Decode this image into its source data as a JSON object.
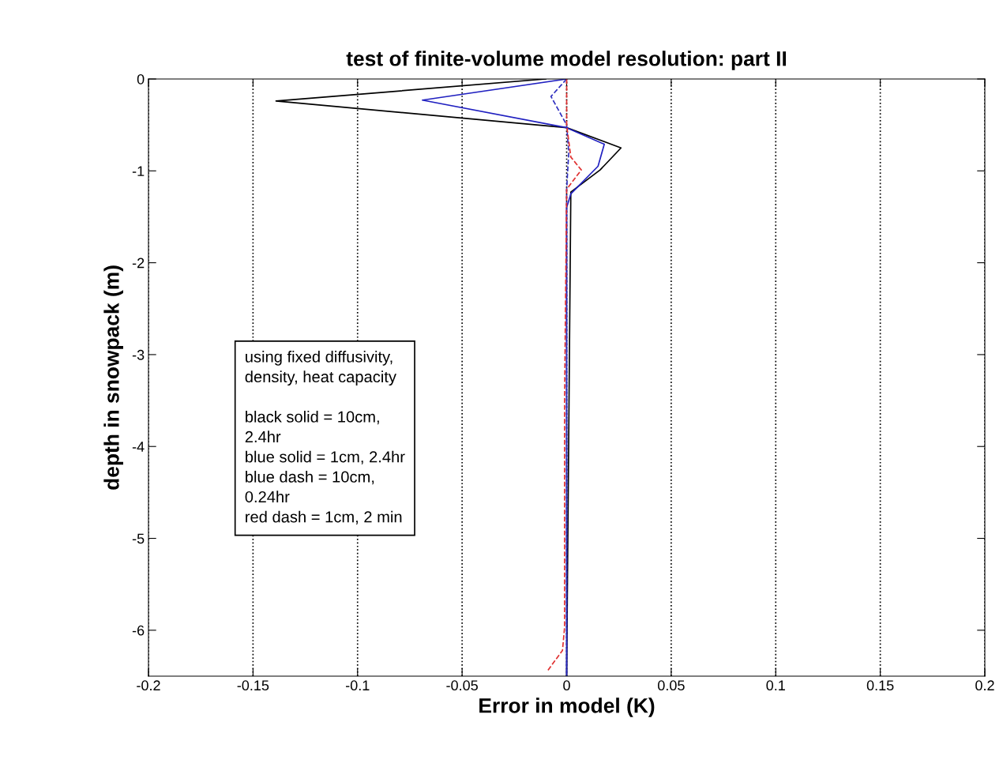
{
  "chart_data": {
    "type": "line",
    "title": "test of finite-volume model resolution: part II",
    "xlabel": "Error in model (K)",
    "ylabel": "depth in snowpack (m)",
    "xlim": [
      -0.2,
      0.2
    ],
    "xticks": [
      -0.2,
      -0.15,
      -0.1,
      -0.05,
      0,
      0.05,
      0.1,
      0.15,
      0.2
    ],
    "ylim": [
      -6.5,
      0
    ],
    "yticks": [
      -6,
      -5,
      -4,
      -3,
      -2,
      -1,
      0
    ],
    "grid": "x",
    "legend": false,
    "annotations": [
      "using fixed diffusivity,\ndensity, heat capacity\n\nblack solid = 10cm,\n2.4hr\nblue solid = 1cm, 2.4hr\nblue dash = 10cm,\n0.24hr\nred dash = 1cm, 2 min"
    ],
    "series": [
      {
        "color": "#000000",
        "line_style": "solid",
        "x": [
          -0.01,
          -0.139,
          0.0,
          0.026,
          0.016,
          0.002,
          0.0
        ],
        "values": [
          0,
          -0.24,
          -0.53,
          -0.75,
          -0.99,
          -1.23,
          -6.5
        ]
      },
      {
        "color": "#2020c0",
        "line_style": "solid",
        "x": [
          0.0,
          -0.069,
          0.0,
          0.018,
          0.015,
          0.002,
          0.0,
          0.0
        ],
        "values": [
          0,
          -0.23,
          -0.53,
          -0.71,
          -0.95,
          -1.25,
          -1.4,
          -6.5
        ]
      },
      {
        "color": "#3030c0",
        "line_style": "dashed",
        "x": [
          0.0,
          -0.0075,
          0.0,
          0.001,
          0.0,
          0.0,
          0.0
        ],
        "values": [
          0,
          -0.19,
          -0.5,
          -0.8,
          -1.2,
          -3.5,
          -6.5
        ]
      },
      {
        "color": "#e03030",
        "line_style": "dashed",
        "x": [
          0.0,
          0.0,
          0.002,
          0.007,
          0.0,
          -0.001,
          -0.001,
          -0.002,
          -0.0094
        ],
        "values": [
          0,
          -0.5,
          -0.85,
          -0.99,
          -1.2,
          -3.5,
          -5.97,
          -6.22,
          -6.45
        ]
      }
    ]
  }
}
